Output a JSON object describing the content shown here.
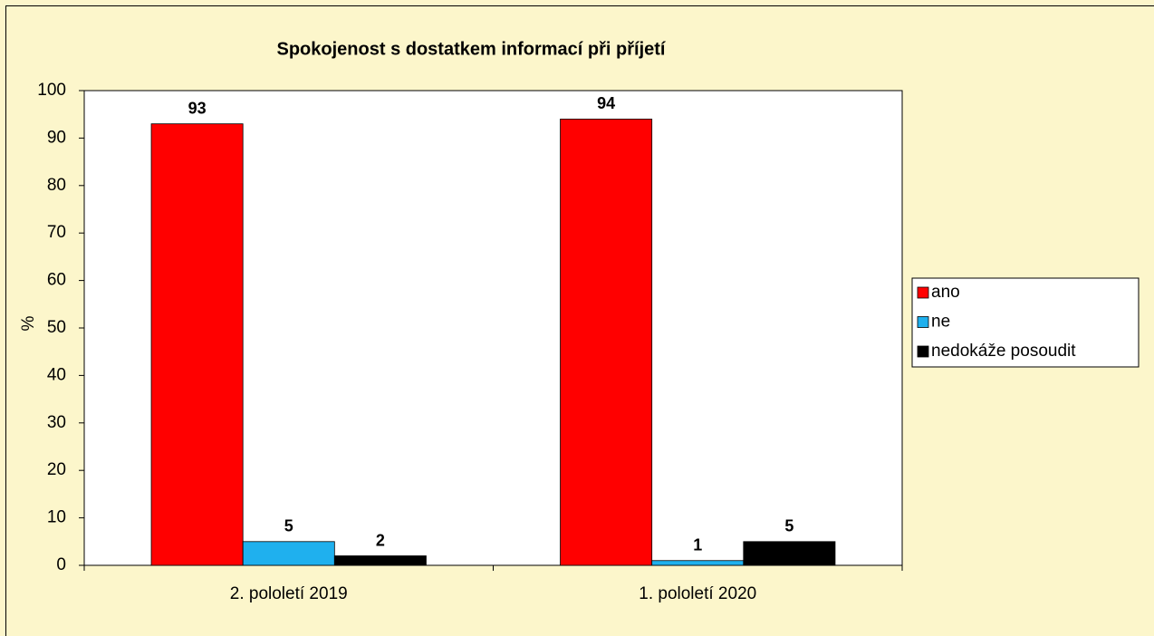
{
  "chart_data": {
    "type": "bar",
    "title": "Spokojenost s dostatkem informací při příjetí",
    "y_label": "%",
    "categories": [
      "2. pololetí 2019",
      "1. pololetí 2020"
    ],
    "series": [
      {
        "name": "ano",
        "color": "#ff0000",
        "values": [
          93,
          94
        ]
      },
      {
        "name": "ne",
        "color": "#1fb0ee",
        "values": [
          5,
          1
        ]
      },
      {
        "name": "nedokáže posoudit",
        "color": "#000000",
        "values": [
          2,
          5
        ]
      }
    ],
    "ylim": [
      0,
      100
    ],
    "yticks": [
      0,
      10,
      20,
      30,
      40,
      50,
      60,
      70,
      80,
      90,
      100
    ],
    "grid": false,
    "legend": "right"
  }
}
